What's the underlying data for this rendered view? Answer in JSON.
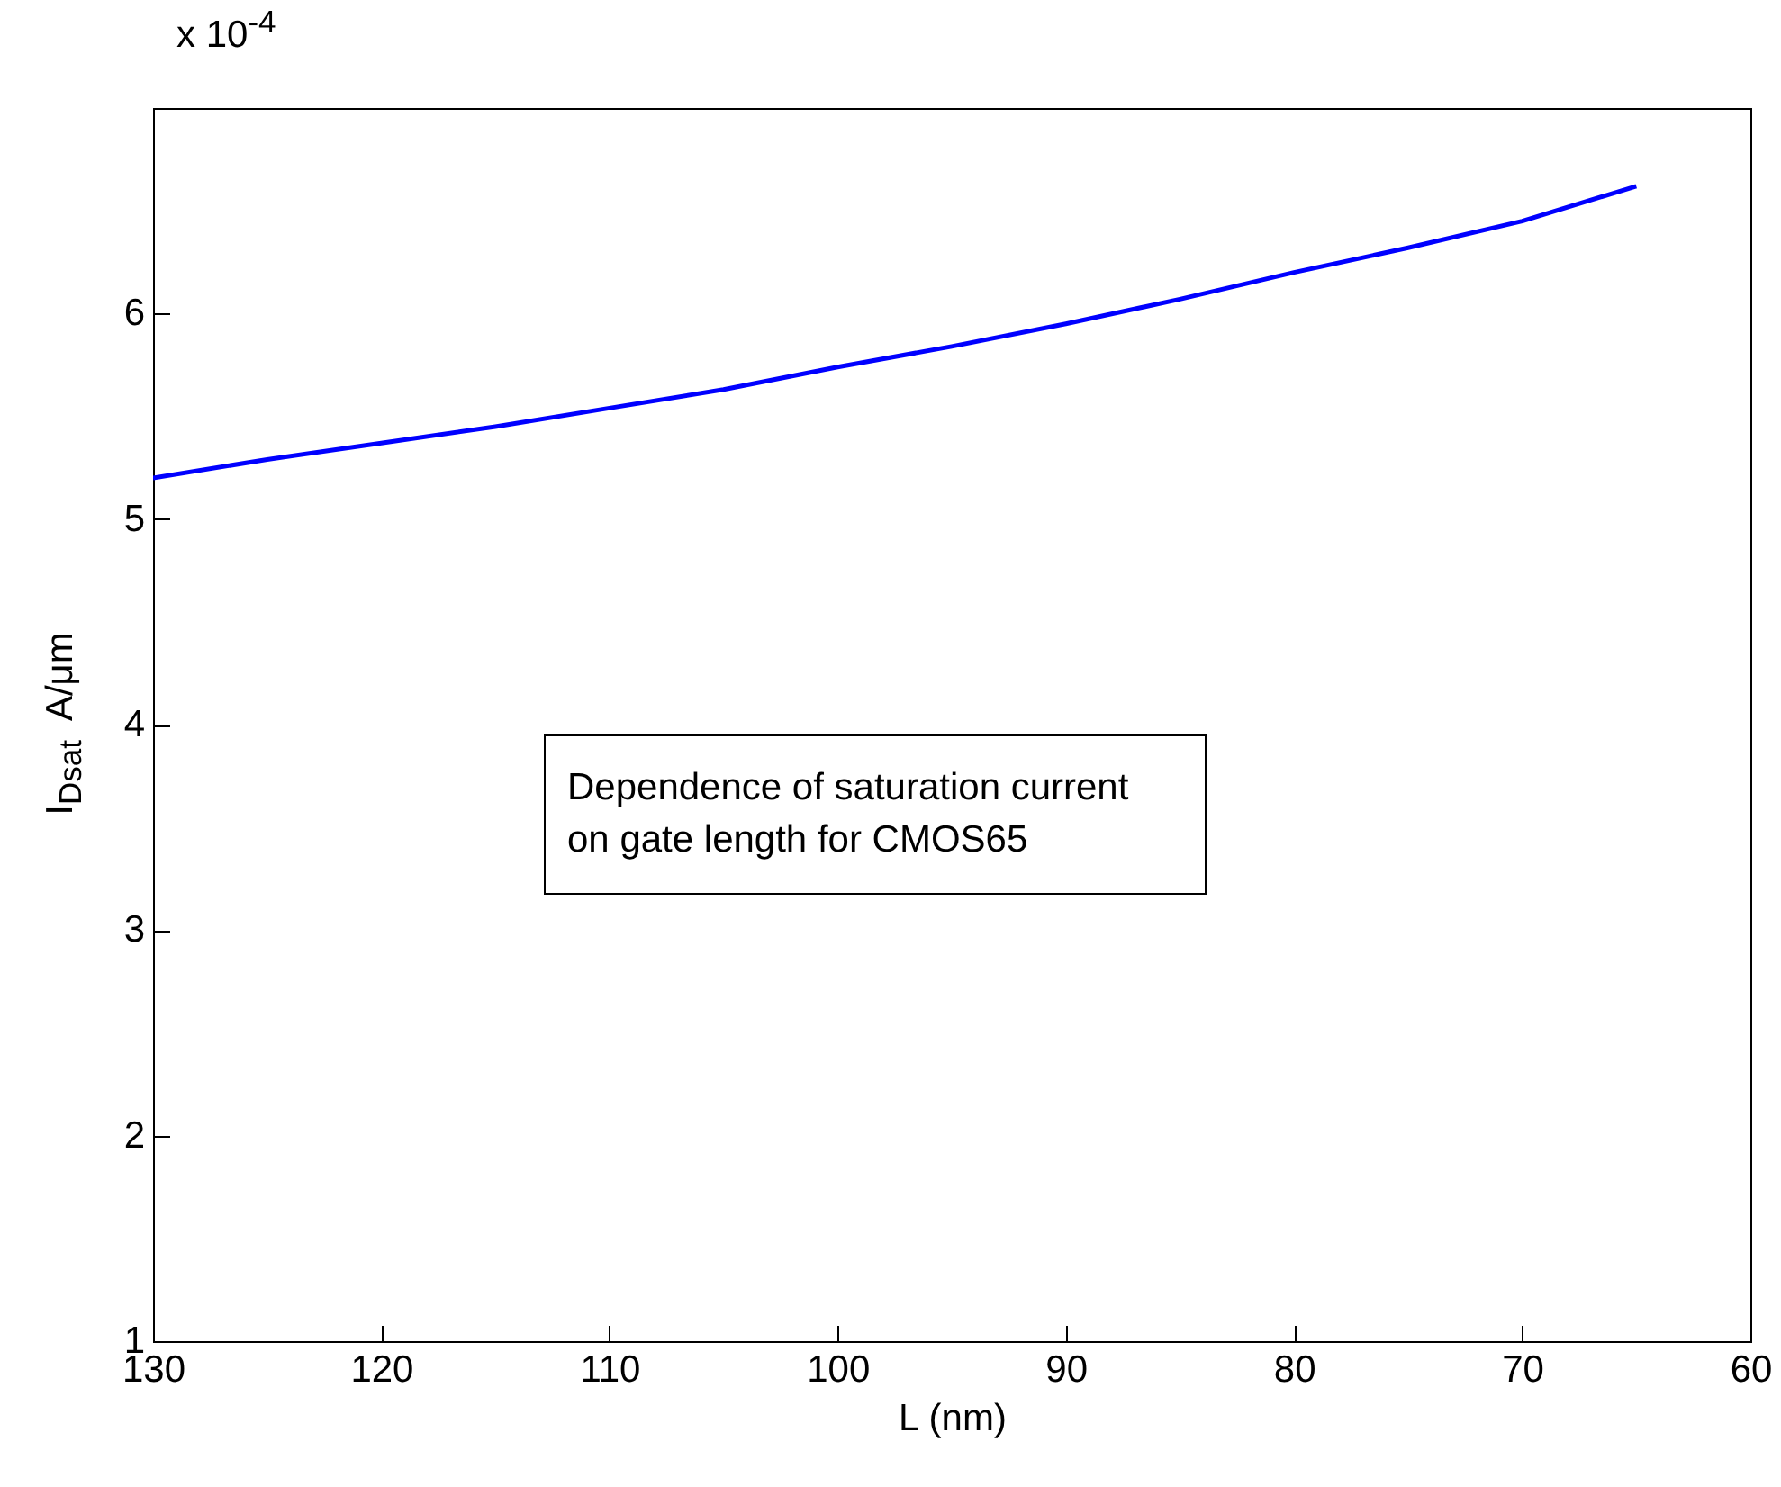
{
  "chart_data": {
    "type": "line",
    "xlabel": "L  (nm)",
    "ylabel": "I$_{Dsat}$  A/μm",
    "annotations": [
      "x 10$^{-4}$",
      "Dependence of saturation current on gate length for CMOS65"
    ],
    "x": [
      130,
      125,
      120,
      115,
      110,
      105,
      100,
      95,
      90,
      85,
      80,
      75,
      70,
      65
    ],
    "series": [
      {
        "color": "#0000ff",
        "values": [
          5.2,
          5.29,
          5.37,
          5.45,
          5.54,
          5.63,
          5.74,
          5.84,
          5.95,
          6.07,
          6.2,
          6.32,
          6.45,
          6.62
        ]
      }
    ],
    "xlim": [
      130,
      60
    ],
    "xticks": [
      130,
      120,
      110,
      100,
      90,
      80,
      70,
      60
    ],
    "ylim": [
      1,
      7
    ],
    "yticks": [
      1,
      2,
      3,
      4,
      5,
      6
    ],
    "grid": false,
    "marker": "none",
    "line_style": "solid"
  }
}
